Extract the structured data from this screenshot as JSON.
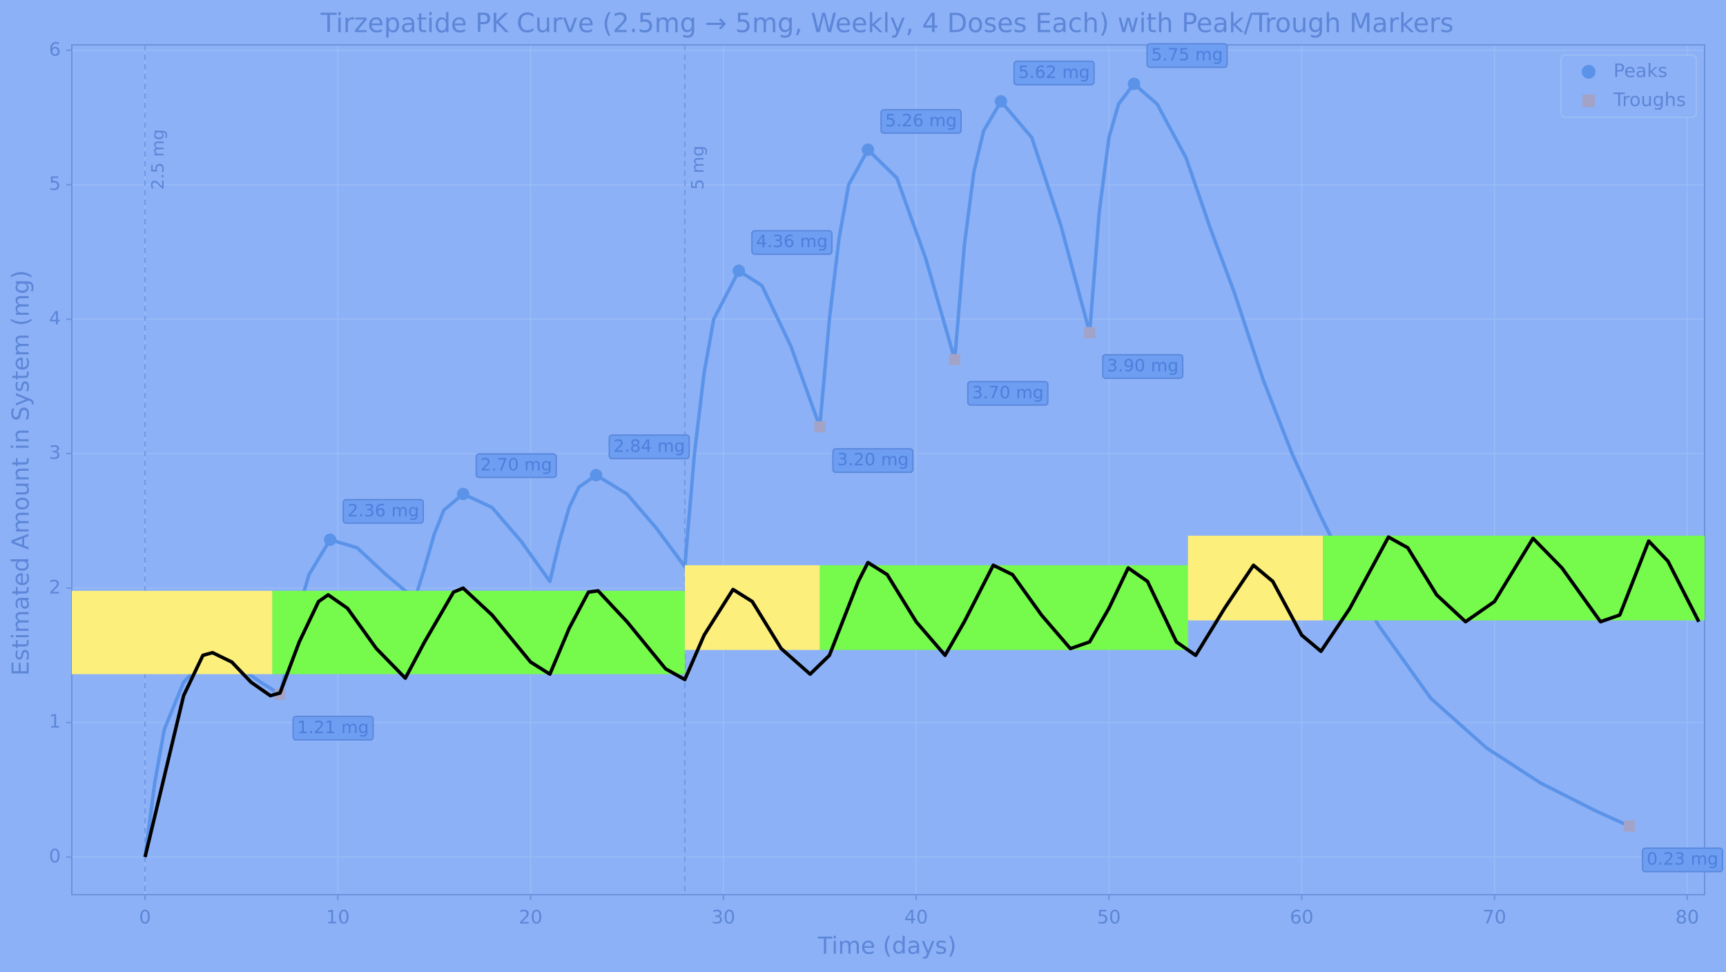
{
  "chart_data": {
    "type": "line",
    "title": "Tirzepatide PK Curve (2.5mg → 5mg, Weekly, 4 Doses Each) with Peak/Trough Markers",
    "x_label": "Time (days)",
    "y_label": "Estimated Amount in System (mg)",
    "xlim": [
      -3.8,
      80.9
    ],
    "ylim": [
      -0.28,
      6.04
    ],
    "xticks": [
      0,
      10,
      20,
      30,
      40,
      50,
      60,
      70,
      80
    ],
    "yticks": [
      0,
      1,
      2,
      3,
      4,
      5,
      6
    ],
    "grid": true,
    "legend": "upper right",
    "curve": {
      "color": "#5b93e9",
      "x": [
        0,
        0.5,
        1,
        2,
        3,
        4,
        5,
        6,
        7,
        7.5,
        8,
        8.5,
        9.6,
        11,
        12.5,
        14,
        14.5,
        15,
        15.5,
        16.5,
        18,
        19.5,
        21,
        21.5,
        22,
        22.5,
        23.4,
        25,
        26.5,
        28,
        28.5,
        29,
        29.5,
        30.8,
        32,
        33.5,
        35,
        35.5,
        36,
        36.5,
        37.5,
        39,
        40.5,
        42,
        42.5,
        43,
        43.5,
        44.4,
        46,
        47.5,
        49,
        49.5,
        50,
        50.5,
        51.3,
        52.5,
        54,
        55.3,
        56.5,
        58,
        59.5,
        61,
        62.5,
        64,
        66.7,
        69.6,
        72.4,
        75.3,
        77
      ],
      "values": [
        0,
        0.55,
        0.95,
        1.3,
        1.45,
        1.45,
        1.4,
        1.3,
        1.21,
        1.5,
        1.85,
        2.1,
        2.36,
        2.3,
        2.1,
        1.92,
        2.15,
        2.4,
        2.58,
        2.7,
        2.6,
        2.35,
        2.05,
        2.35,
        2.6,
        2.75,
        2.84,
        2.7,
        2.45,
        2.16,
        3.0,
        3.6,
        4.0,
        4.36,
        4.25,
        3.8,
        3.2,
        4.0,
        4.6,
        5.0,
        5.26,
        5.05,
        4.45,
        3.7,
        4.55,
        5.1,
        5.4,
        5.62,
        5.35,
        4.7,
        3.9,
        4.8,
        5.35,
        5.6,
        5.75,
        5.6,
        5.2,
        4.66,
        4.2,
        3.55,
        3.0,
        2.53,
        2.1,
        1.72,
        1.18,
        0.81,
        0.55,
        0.34,
        0.23
      ]
    },
    "series": [
      {
        "name": "Peaks",
        "marker": "circle",
        "color": "#5b93e9",
        "x": [
          9.6,
          16.5,
          23.4,
          30.8,
          37.5,
          44.4,
          51.3
        ],
        "values": [
          2.36,
          2.7,
          2.84,
          4.36,
          5.26,
          5.62,
          5.75
        ],
        "value_labels": [
          "2.36 mg",
          "2.70 mg",
          "2.84 mg",
          "4.36 mg",
          "5.26 mg",
          "5.62 mg",
          "5.75 mg"
        ]
      },
      {
        "name": "Troughs",
        "marker": "square",
        "color": "#a2a3c6",
        "x": [
          7,
          35,
          42,
          49,
          77
        ],
        "values": [
          1.21,
          3.2,
          3.7,
          3.9,
          0.23
        ],
        "value_labels": [
          "1.21 mg",
          "3.20 mg",
          "3.70 mg",
          "3.90 mg",
          "0.23 mg"
        ]
      }
    ],
    "vlines": [
      {
        "x": 0,
        "label": "2.5 mg"
      },
      {
        "x": 28,
        "label": "5 mg"
      }
    ],
    "bands": [
      {
        "x": [
          -3.8,
          6.6
        ],
        "y": [
          1.36,
          1.98
        ],
        "color": "#fdef7c"
      },
      {
        "x": [
          6.6,
          28
        ],
        "y": [
          1.36,
          1.98
        ],
        "color": "#76fb4c"
      },
      {
        "x": [
          28,
          35
        ],
        "y": [
          1.54,
          2.17
        ],
        "color": "#fdef7c"
      },
      {
        "x": [
          35,
          54.1
        ],
        "y": [
          1.54,
          2.17
        ],
        "color": "#76fb4c"
      },
      {
        "x": [
          54.1,
          61.1
        ],
        "y": [
          1.76,
          2.39
        ],
        "color": "#fdef7c"
      },
      {
        "x": [
          61.1,
          80.9
        ],
        "y": [
          1.76,
          2.39
        ],
        "color": "#76fb4c"
      }
    ],
    "overlay_line": {
      "color": "#000000",
      "x": [
        0,
        1,
        2,
        3,
        3.5,
        4.5,
        5.5,
        6.5,
        7,
        8,
        9,
        9.5,
        10.5,
        12,
        13.5,
        14.5,
        16,
        16.5,
        18,
        20,
        21,
        22,
        23,
        23.5,
        25,
        27,
        28,
        29,
        30.5,
        31.5,
        33,
        34.5,
        35.5,
        37,
        37.5,
        38.5,
        40,
        41.5,
        42.5,
        44,
        45,
        46.5,
        48,
        49,
        50,
        51,
        52,
        53.5,
        54.5,
        56,
        57.5,
        58.5,
        60,
        61,
        62.5,
        64.5,
        65.5,
        67,
        68.5,
        70,
        72,
        73.5,
        75.5,
        76.5,
        78,
        79,
        80.6
      ],
      "values": [
        0,
        0.6,
        1.2,
        1.5,
        1.52,
        1.45,
        1.3,
        1.2,
        1.22,
        1.6,
        1.9,
        1.95,
        1.85,
        1.55,
        1.33,
        1.6,
        1.97,
        2.0,
        1.8,
        1.45,
        1.36,
        1.7,
        1.97,
        1.98,
        1.75,
        1.4,
        1.32,
        1.65,
        1.99,
        1.9,
        1.55,
        1.36,
        1.5,
        2.05,
        2.19,
        2.1,
        1.75,
        1.5,
        1.75,
        2.17,
        2.1,
        1.8,
        1.55,
        1.6,
        1.85,
        2.15,
        2.05,
        1.6,
        1.5,
        1.85,
        2.17,
        2.05,
        1.65,
        1.53,
        1.85,
        2.38,
        2.3,
        1.95,
        1.75,
        1.9,
        2.37,
        2.15,
        1.75,
        1.8,
        2.35,
        2.2,
        1.75
      ]
    }
  }
}
